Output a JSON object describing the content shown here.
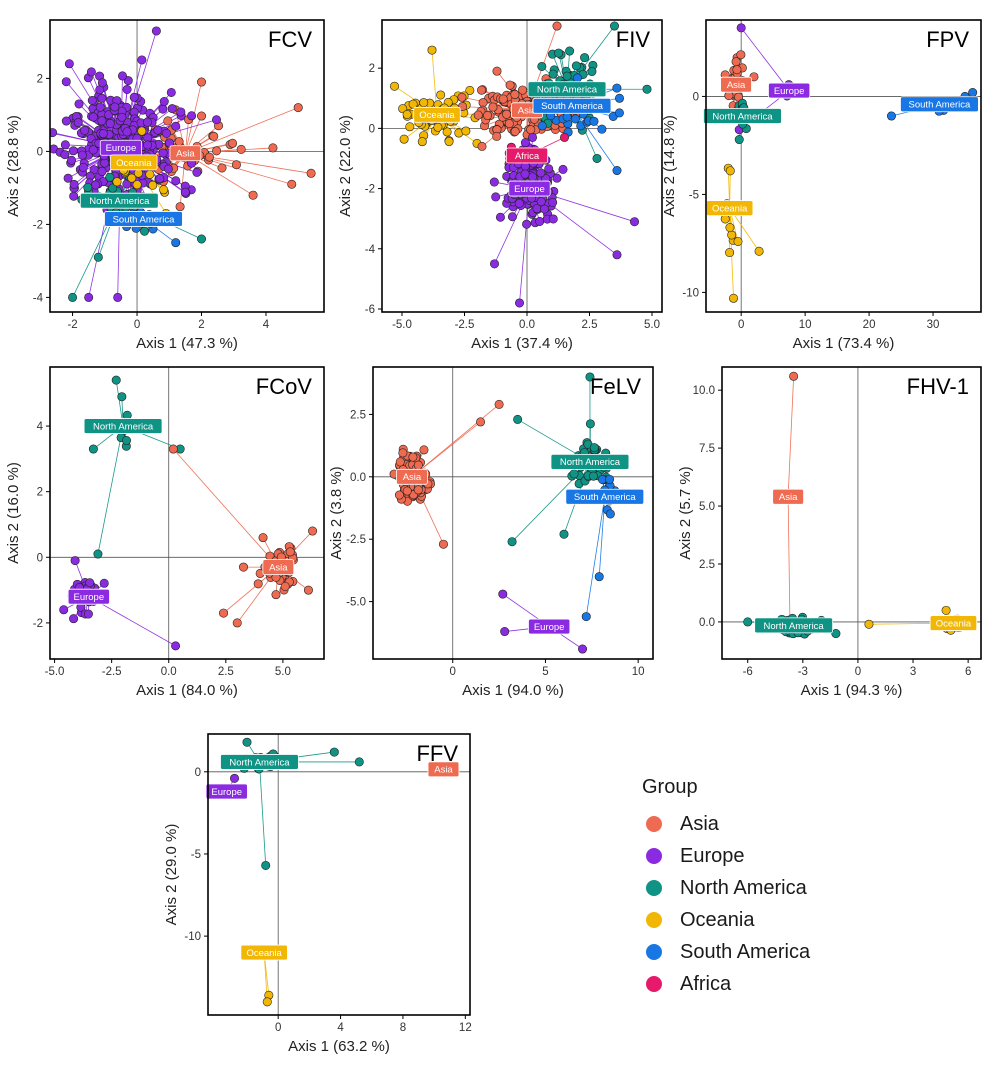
{
  "legend": {
    "title": "Group",
    "groups": [
      {
        "name": "Asia",
        "color": "#EE6A50"
      },
      {
        "name": "Europe",
        "color": "#8A2BE2"
      },
      {
        "name": "North America",
        "color": "#0F9384"
      },
      {
        "name": "Oceania",
        "color": "#F2B705"
      },
      {
        "name": "South America",
        "color": "#1877E5"
      },
      {
        "name": "Africa",
        "color": "#E6196A"
      }
    ]
  },
  "chart_data": [
    {
      "type": "scatter",
      "title": "FCV",
      "xlabel": "Axis 1 (47.3 %)",
      "ylabel": "Axis 2 (28.8 %)",
      "xlim": [
        -2.7,
        5.8
      ],
      "ylim": [
        -4.4,
        3.6
      ],
      "xticks": [
        -2,
        0,
        2,
        4
      ],
      "yticks": [
        -4,
        -2,
        0,
        2
      ],
      "groups": [
        {
          "name": "Asia",
          "centroid": [
            1.5,
            -0.05
          ],
          "n": 60,
          "spread": [
            1.7,
            0.9
          ],
          "extremes": [
            [
              5.4,
              -0.6
            ],
            [
              5.0,
              1.2
            ],
            [
              3.6,
              -1.2
            ],
            [
              2.0,
              1.9
            ],
            [
              4.8,
              -0.9
            ]
          ]
        },
        {
          "name": "Europe",
          "centroid": [
            -0.5,
            0.1
          ],
          "n": 330,
          "spread": [
            1.5,
            1.5
          ],
          "extremes": [
            [
              -2.1,
              2.4
            ],
            [
              0.6,
              3.3
            ],
            [
              -1.5,
              -4.0
            ],
            [
              -0.6,
              -4.0
            ],
            [
              -1.8,
              1.3
            ]
          ]
        },
        {
          "name": "North America",
          "centroid": [
            -0.55,
            -1.35
          ],
          "n": 28,
          "spread": [
            0.9,
            0.9
          ],
          "extremes": [
            [
              -2.0,
              -4.0
            ],
            [
              2.0,
              -2.4
            ],
            [
              -1.2,
              -2.9
            ]
          ]
        },
        {
          "name": "Oceania",
          "centroid": [
            -0.1,
            -0.3
          ],
          "n": 22,
          "spread": [
            0.8,
            0.7
          ],
          "extremes": [
            [
              0.9,
              -1.7
            ]
          ]
        },
        {
          "name": "South America",
          "centroid": [
            0.2,
            -1.85
          ],
          "n": 14,
          "spread": [
            0.7,
            0.5
          ],
          "extremes": [
            [
              1.2,
              -2.5
            ]
          ]
        }
      ]
    },
    {
      "type": "scatter",
      "title": "FIV",
      "xlabel": "Axis 1 (37.4 %)",
      "ylabel": "Axis 2 (22.0 %)",
      "xlim": [
        -5.8,
        5.4
      ],
      "ylim": [
        -6.1,
        3.6
      ],
      "xticks": [
        -5.0,
        -2.5,
        0.0,
        2.5,
        5.0
      ],
      "yticks": [
        -6,
        -4,
        -2,
        0,
        2
      ],
      "groups": [
        {
          "name": "Oceania",
          "centroid": [
            -3.6,
            0.45
          ],
          "n": 70,
          "spread": [
            1.2,
            0.8
          ],
          "extremes": [
            [
              -5.3,
              1.4
            ],
            [
              -3.8,
              2.6
            ],
            [
              -2.0,
              -0.5
            ]
          ]
        },
        {
          "name": "Asia",
          "centroid": [
            0.0,
            0.6
          ],
          "n": 180,
          "spread": [
            1.6,
            0.8
          ],
          "extremes": [
            [
              1.2,
              3.4
            ],
            [
              -1.2,
              1.9
            ],
            [
              -1.8,
              -0.6
            ]
          ]
        },
        {
          "name": "North America",
          "centroid": [
            1.6,
            1.3
          ],
          "n": 60,
          "spread": [
            1.0,
            1.2
          ],
          "extremes": [
            [
              3.5,
              3.4
            ],
            [
              4.8,
              1.3
            ],
            [
              2.8,
              -1.0
            ]
          ]
        },
        {
          "name": "South America",
          "centroid": [
            1.8,
            0.75
          ],
          "n": 30,
          "spread": [
            1.2,
            0.8
          ],
          "extremes": [
            [
              3.7,
              1.0
            ],
            [
              3.6,
              -1.4
            ]
          ]
        },
        {
          "name": "Africa",
          "centroid": [
            0.0,
            -0.9
          ],
          "n": 15,
          "spread": [
            0.6,
            0.5
          ],
          "extremes": [
            [
              1.5,
              -0.3
            ]
          ]
        },
        {
          "name": "Europe",
          "centroid": [
            0.1,
            -2.0
          ],
          "n": 140,
          "spread": [
            0.9,
            1.0
          ],
          "extremes": [
            [
              -1.3,
              -4.5
            ],
            [
              -0.3,
              -5.8
            ],
            [
              4.3,
              -3.1
            ],
            [
              3.6,
              -4.2
            ]
          ]
        }
      ]
    },
    {
      "type": "scatter",
      "title": "FPV",
      "xlabel": "Axis 1 (73.4 %)",
      "ylabel": "Axis 2 (14.8 %)",
      "xlim": [
        -5.5,
        37.5
      ],
      "ylim": [
        -11.0,
        3.9
      ],
      "xticks": [
        0,
        10,
        20,
        30
      ],
      "yticks": [
        -10,
        -5,
        0
      ],
      "groups": [
        {
          "name": "Asia",
          "centroid": [
            -0.8,
            0.6
          ],
          "n": 30,
          "spread": [
            0.9,
            1.2
          ],
          "extremes": [
            [
              -2.5,
              1.1
            ],
            [
              2.0,
              1.0
            ]
          ]
        },
        {
          "name": "Europe",
          "centroid": [
            7.5,
            0.3
          ],
          "n": 8,
          "spread": [
            0.6,
            0.5
          ],
          "extremes": [
            [
              0.0,
              3.5
            ],
            [
              -0.3,
              -1.7
            ]
          ]
        },
        {
          "name": "North America",
          "centroid": [
            0.2,
            -1.0
          ],
          "n": 12,
          "spread": [
            0.6,
            0.8
          ],
          "extremes": [
            [
              -0.3,
              -2.2
            ]
          ]
        },
        {
          "name": "Oceania",
          "centroid": [
            -1.8,
            -5.7
          ],
          "n": 14,
          "spread": [
            0.8,
            2.2
          ],
          "extremes": [
            [
              -1.2,
              -10.3
            ],
            [
              2.8,
              -7.9
            ],
            [
              -0.5,
              -7.4
            ]
          ]
        },
        {
          "name": "South America",
          "centroid": [
            31.0,
            -0.4
          ],
          "n": 5,
          "spread": [
            2.0,
            0.4
          ],
          "extremes": [
            [
              23.5,
              -1.0
            ],
            [
              36.2,
              0.2
            ],
            [
              35.0,
              0.0
            ]
          ]
        }
      ]
    },
    {
      "type": "scatter",
      "title": "FCoV",
      "xlabel": "Axis 1 (84.0 %)",
      "ylabel": "Axis 2 (16.0 %)",
      "xlim": [
        -5.2,
        6.8
      ],
      "ylim": [
        -3.1,
        5.8
      ],
      "xticks": [
        -5.0,
        -2.5,
        0.0,
        2.5,
        5.0
      ],
      "yticks": [
        -2,
        0,
        2,
        4
      ],
      "groups": [
        {
          "name": "North America",
          "centroid": [
            -2.0,
            4.0
          ],
          "n": 10,
          "spread": [
            0.3,
            0.8
          ],
          "extremes": [
            [
              -2.3,
              5.4
            ],
            [
              0.5,
              3.3
            ],
            [
              -3.3,
              3.3
            ],
            [
              -3.1,
              0.1
            ]
          ]
        },
        {
          "name": "Asia",
          "centroid": [
            4.8,
            -0.3
          ],
          "n": 45,
          "spread": [
            0.8,
            0.7
          ],
          "extremes": [
            [
              0.2,
              3.3
            ],
            [
              2.4,
              -1.7
            ],
            [
              3.0,
              -2.0
            ],
            [
              6.3,
              0.8
            ]
          ]
        },
        {
          "name": "Europe",
          "centroid": [
            -3.5,
            -1.2
          ],
          "n": 35,
          "spread": [
            0.6,
            0.6
          ],
          "extremes": [
            [
              0.3,
              -2.7
            ],
            [
              -4.6,
              -1.6
            ],
            [
              -4.1,
              -0.1
            ]
          ]
        }
      ]
    },
    {
      "type": "scatter",
      "title": "FeLV",
      "xlabel": "Axis 1 (94.0 %)",
      "ylabel": "Axis 2 (3.8 %)",
      "xlim": [
        -4.3,
        10.8
      ],
      "ylim": [
        -7.3,
        4.4
      ],
      "xticks": [
        0,
        5,
        10
      ],
      "yticks": [
        -5.0,
        -2.5,
        0.0,
        2.5
      ],
      "groups": [
        {
          "name": "Asia",
          "centroid": [
            -2.2,
            0.0
          ],
          "n": 110,
          "spread": [
            0.8,
            0.9
          ],
          "extremes": [
            [
              1.5,
              2.2
            ],
            [
              2.5,
              2.9
            ],
            [
              -0.5,
              -2.7
            ]
          ]
        },
        {
          "name": "North America",
          "centroid": [
            7.4,
            0.6
          ],
          "n": 50,
          "spread": [
            1.0,
            1.1
          ],
          "extremes": [
            [
              3.5,
              2.3
            ],
            [
              7.4,
              4.0
            ],
            [
              3.2,
              -2.6
            ],
            [
              6.0,
              -2.3
            ]
          ]
        },
        {
          "name": "South America",
          "centroid": [
            8.2,
            -0.8
          ],
          "n": 12,
          "spread": [
            0.5,
            0.9
          ],
          "extremes": [
            [
              7.9,
              -4.0
            ],
            [
              7.2,
              -5.6
            ]
          ]
        },
        {
          "name": "Europe",
          "centroid": [
            5.2,
            -6.0
          ],
          "n": 3,
          "spread": [
            0.5,
            0.3
          ],
          "extremes": [
            [
              2.7,
              -4.7
            ],
            [
              2.8,
              -6.2
            ],
            [
              7.0,
              -6.9
            ]
          ]
        }
      ]
    },
    {
      "type": "scatter",
      "title": "FHV-1",
      "xlabel": "Axis 1 (94.3 %)",
      "ylabel": "Axis 2 (5.7 %)",
      "xlim": [
        -7.4,
        6.7
      ],
      "ylim": [
        -1.6,
        11.0
      ],
      "xticks": [
        -6,
        -3,
        0,
        3,
        6
      ],
      "yticks": [
        0.0,
        2.5,
        5.0,
        7.5,
        10.0
      ],
      "groups": [
        {
          "name": "Asia",
          "centroid": [
            -3.8,
            5.4
          ],
          "n": 2,
          "spread": [
            0.0,
            0.0
          ],
          "extremes": [
            [
              -3.5,
              10.6
            ],
            [
              -3.7,
              -0.1
            ]
          ]
        },
        {
          "name": "North America",
          "centroid": [
            -3.5,
            -0.15
          ],
          "n": 70,
          "spread": [
            0.9,
            0.3
          ],
          "extremes": [
            [
              -6.0,
              0.0
            ],
            [
              -1.2,
              -0.5
            ]
          ]
        },
        {
          "name": "Oceania",
          "centroid": [
            5.2,
            -0.05
          ],
          "n": 30,
          "spread": [
            0.6,
            0.2
          ],
          "extremes": [
            [
              0.6,
              -0.1
            ],
            [
              4.8,
              0.5
            ]
          ]
        }
      ]
    },
    {
      "type": "scatter",
      "title": "FFV",
      "xlabel": "Axis 1 (63.2 %)",
      "ylabel": "Axis 2 (29.0 %)",
      "xlim": [
        -4.5,
        12.3
      ],
      "ylim": [
        -14.8,
        2.3
      ],
      "xticks": [
        0,
        4,
        8,
        12
      ],
      "yticks": [
        -10,
        -5,
        0
      ],
      "groups": [
        {
          "name": "North America",
          "centroid": [
            -1.2,
            0.6
          ],
          "n": 30,
          "spread": [
            1.0,
            0.5
          ],
          "extremes": [
            [
              3.6,
              1.2
            ],
            [
              5.2,
              0.6
            ],
            [
              -0.8,
              -5.7
            ],
            [
              -2.0,
              1.8
            ]
          ]
        },
        {
          "name": "Asia",
          "centroid": [
            10.6,
            0.15
          ],
          "n": 8,
          "spread": [
            0.7,
            0.2
          ],
          "extremes": [
            [
              11.2,
              0.2
            ]
          ]
        },
        {
          "name": "Europe",
          "centroid": [
            -3.3,
            -1.2
          ],
          "n": 2,
          "spread": [
            0.3,
            0.3
          ],
          "extremes": [
            [
              -2.8,
              -0.4
            ]
          ]
        },
        {
          "name": "Oceania",
          "centroid": [
            -0.9,
            -11.0
          ],
          "n": 3,
          "spread": [
            0.1,
            1.0
          ],
          "extremes": [
            [
              -0.6,
              -13.6
            ],
            [
              -0.7,
              -14.0
            ]
          ]
        }
      ]
    }
  ]
}
